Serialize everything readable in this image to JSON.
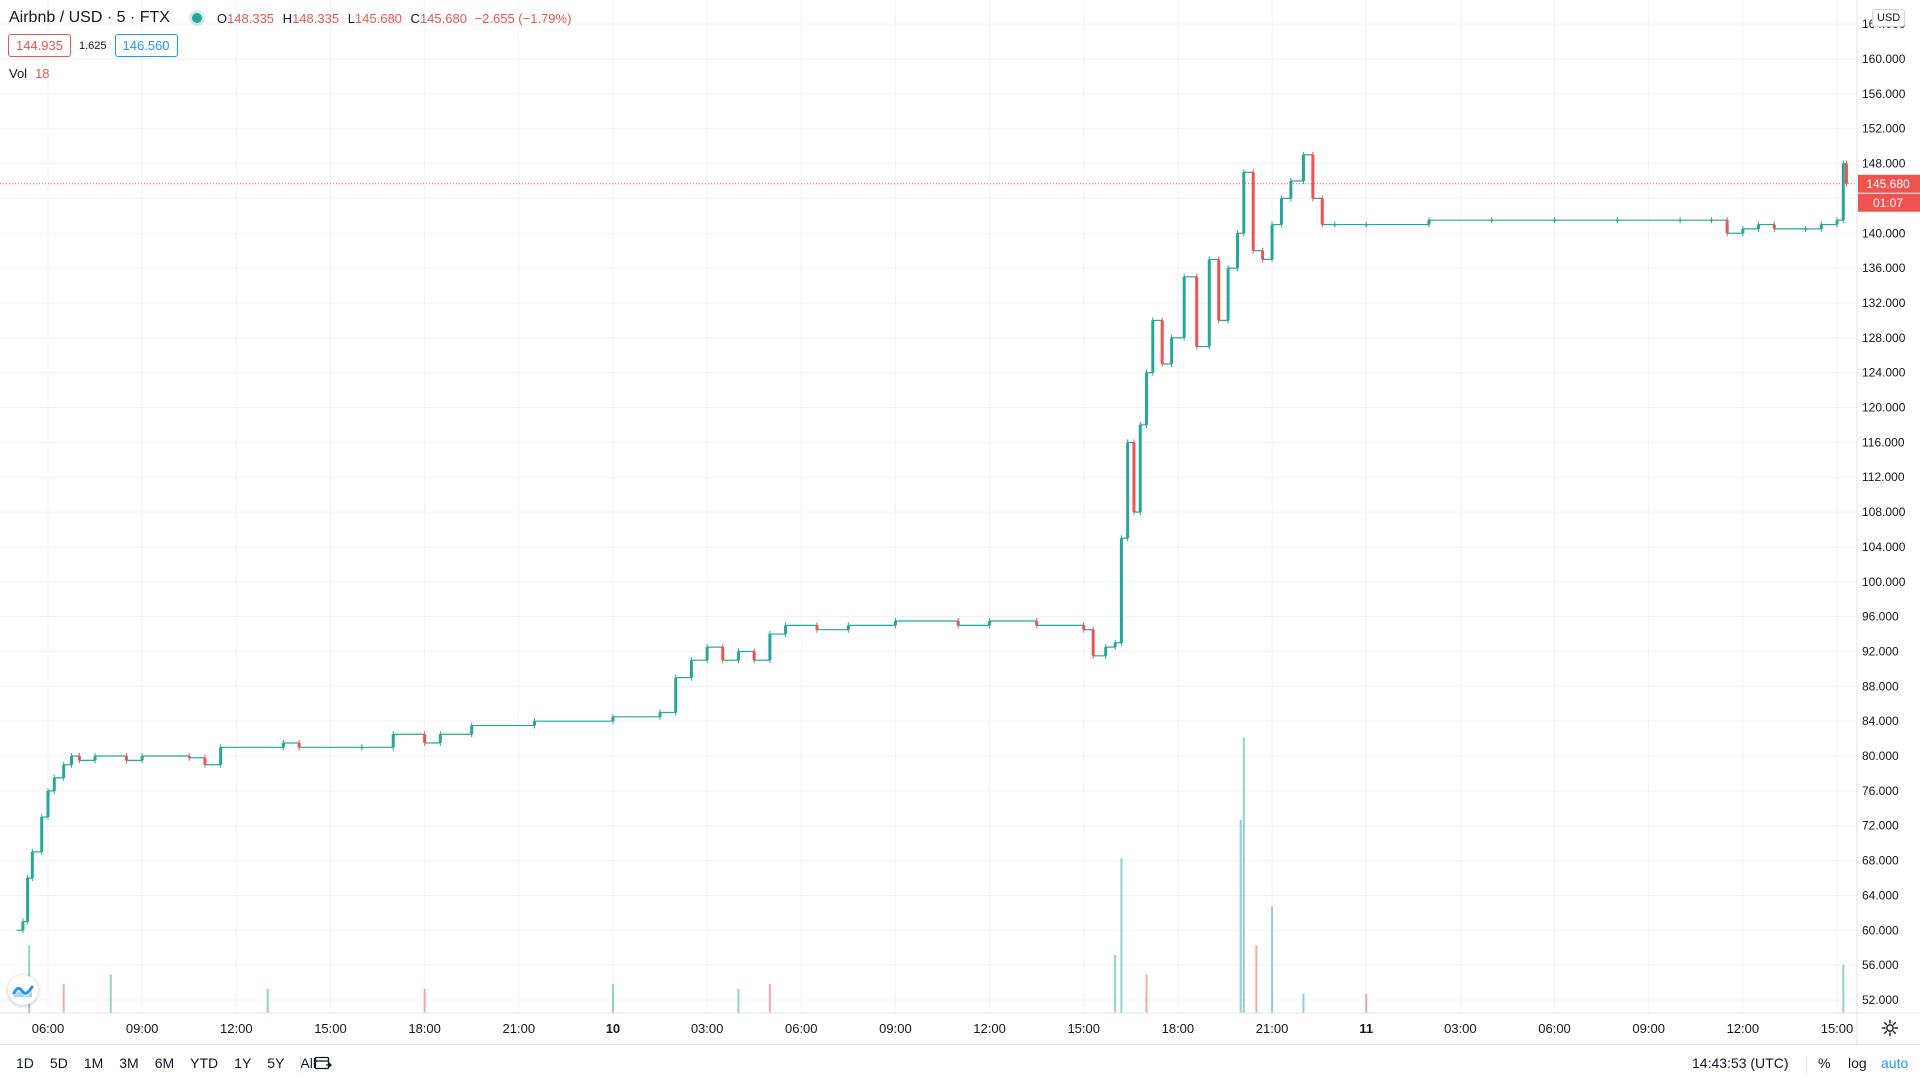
{
  "header": {
    "symbol": "Airbnb / USD · 5 · FTX",
    "ohlc": {
      "o_label": "O",
      "o": "148.335",
      "h_label": "H",
      "h": "148.335",
      "l_label": "L",
      "l": "145.680",
      "c_label": "C",
      "c": "145.680",
      "change": "−2.655 (−1.79%)"
    },
    "bid": "144.935",
    "spread": "1.625",
    "ask": "146.560",
    "vol_label": "Vol",
    "vol_value": "18"
  },
  "price_axis": {
    "currency": "USD",
    "ticks": [
      "52.000",
      "56.000",
      "60.000",
      "64.000",
      "68.000",
      "72.000",
      "76.000",
      "80.000",
      "84.000",
      "88.000",
      "92.000",
      "96.000",
      "100.000",
      "104.000",
      "108.000",
      "112.000",
      "116.000",
      "120.000",
      "124.000",
      "128.000",
      "132.000",
      "136.000",
      "140.000",
      "144.000",
      "148.000",
      "152.000",
      "156.000",
      "160.000",
      "164.000"
    ],
    "last_price_label": "145.680",
    "countdown": "01:07"
  },
  "time_axis": {
    "ticks": [
      "06:00",
      "09:00",
      "12:00",
      "15:00",
      "18:00",
      "21:00",
      "10",
      "03:00",
      "06:00",
      "09:00",
      "12:00",
      "15:00",
      "18:00",
      "21:00",
      "11",
      "03:00",
      "06:00",
      "09:00",
      "12:00",
      "15:00"
    ]
  },
  "bottom_toolbar": {
    "ranges": [
      "1D",
      "5D",
      "1M",
      "3M",
      "6M",
      "YTD",
      "1Y",
      "5Y",
      "All"
    ],
    "clock": "14:43:53 (UTC)",
    "percent": "%",
    "log": "log",
    "auto": "auto"
  },
  "colors": {
    "up": "#26a69a",
    "down": "#ef5350",
    "grid": "#f0f3fa",
    "axis_line": "#e0e3eb",
    "accent": "#2196f3"
  },
  "chart_data": {
    "type": "candlestick",
    "y_scale": "linear",
    "ylim": [
      50,
      166
    ],
    "last_price": 145.68,
    "x_unit": "hours since 05:00 (day of 9th)",
    "x_tick_hours": [
      1,
      4,
      7,
      10,
      13,
      16,
      19,
      22,
      25,
      28,
      31,
      34,
      37,
      40,
      43,
      46,
      49,
      52,
      55,
      58
    ],
    "price_path": [
      [
        0,
        60
      ],
      [
        0.2,
        61
      ],
      [
        0.35,
        66
      ],
      [
        0.5,
        69
      ],
      [
        0.8,
        73
      ],
      [
        1.0,
        76
      ],
      [
        1.2,
        77.5
      ],
      [
        1.5,
        79
      ],
      [
        1.75,
        80
      ],
      [
        2.0,
        79.5
      ],
      [
        2.5,
        80
      ],
      [
        3.5,
        79.5
      ],
      [
        4.0,
        80
      ],
      [
        5.5,
        79.8
      ],
      [
        6.0,
        79
      ],
      [
        6.5,
        81
      ],
      [
        8.5,
        81.5
      ],
      [
        9.0,
        81
      ],
      [
        11.0,
        81
      ],
      [
        12.0,
        82.5
      ],
      [
        13.0,
        81.5
      ],
      [
        13.5,
        82.5
      ],
      [
        14.5,
        83.5
      ],
      [
        16.5,
        84
      ],
      [
        19.0,
        84.5
      ],
      [
        20.5,
        85
      ],
      [
        21.0,
        89
      ],
      [
        21.5,
        91
      ],
      [
        22.0,
        92.5
      ],
      [
        22.5,
        91
      ],
      [
        23.0,
        92
      ],
      [
        23.5,
        91
      ],
      [
        24.0,
        94
      ],
      [
        24.5,
        95
      ],
      [
        25.5,
        94.5
      ],
      [
        26.5,
        95
      ],
      [
        28.0,
        95.5
      ],
      [
        30.0,
        95
      ],
      [
        31.0,
        95.5
      ],
      [
        32.5,
        95
      ],
      [
        34.0,
        94.5
      ],
      [
        34.3,
        91.5
      ],
      [
        34.7,
        92.5
      ],
      [
        35.0,
        93
      ],
      [
        35.2,
        105
      ],
      [
        35.4,
        116
      ],
      [
        35.6,
        108
      ],
      [
        35.8,
        118
      ],
      [
        36.0,
        124
      ],
      [
        36.2,
        130
      ],
      [
        36.5,
        125
      ],
      [
        36.8,
        128
      ],
      [
        37.2,
        135
      ],
      [
        37.6,
        127
      ],
      [
        38.0,
        137
      ],
      [
        38.3,
        130
      ],
      [
        38.6,
        136
      ],
      [
        38.9,
        140
      ],
      [
        39.1,
        147
      ],
      [
        39.4,
        138
      ],
      [
        39.7,
        137
      ],
      [
        40.0,
        141
      ],
      [
        40.3,
        144
      ],
      [
        40.6,
        146
      ],
      [
        41.0,
        149
      ],
      [
        41.3,
        144
      ],
      [
        41.6,
        141
      ],
      [
        42.0,
        141
      ],
      [
        43.0,
        141
      ],
      [
        45.0,
        141.5
      ],
      [
        47.0,
        141.5
      ],
      [
        49.0,
        141.5
      ],
      [
        51.0,
        141.5
      ],
      [
        53.0,
        141.5
      ],
      [
        54.0,
        141.5
      ],
      [
        54.5,
        140
      ],
      [
        55.0,
        140.5
      ],
      [
        55.5,
        141
      ],
      [
        56.0,
        140.5
      ],
      [
        57.0,
        140.5
      ],
      [
        57.5,
        141
      ],
      [
        58.0,
        141.5
      ],
      [
        58.2,
        148
      ],
      [
        58.3,
        145.68
      ]
    ],
    "volume": {
      "ylim": [
        0,
        300
      ],
      "bars": [
        [
          0.4,
          70
        ],
        [
          1.5,
          30
        ],
        [
          3,
          40
        ],
        [
          8,
          25
        ],
        [
          13,
          25
        ],
        [
          19,
          30
        ],
        [
          23,
          25
        ],
        [
          24,
          30
        ],
        [
          35,
          60
        ],
        [
          35.2,
          160
        ],
        [
          36,
          40
        ],
        [
          39,
          200
        ],
        [
          39.1,
          285
        ],
        [
          39.5,
          70
        ],
        [
          40,
          110
        ],
        [
          41,
          20
        ],
        [
          43,
          20
        ],
        [
          58.2,
          50
        ]
      ]
    }
  }
}
